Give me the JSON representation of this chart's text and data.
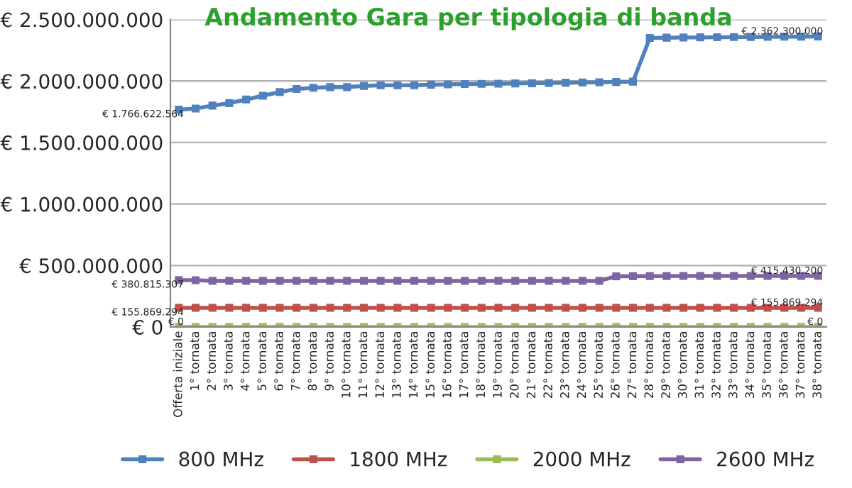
{
  "chart_data": {
    "type": "line",
    "title": "Andamento Gara per tipologia di banda",
    "categories": [
      "Offerta iniziale",
      "1° tornata",
      "2° tornata",
      "3° tornata",
      "4° tornata",
      "5° tornata",
      "6° tornata",
      "7° tornata",
      "8° tornata",
      "9° tornata",
      "10° tornata",
      "11° tornata",
      "12° tornata",
      "13° tornata",
      "14° tornata",
      "15° tornata",
      "16° tornata",
      "17° tornata",
      "18° tornata",
      "19° tornata",
      "20° tornata",
      "21° tornata",
      "22° tornata",
      "23° tornata",
      "24° tornata",
      "25° tornata",
      "26° tornata",
      "27° tornata",
      "28° tornata",
      "29° tornata",
      "30° tornata",
      "31° tornata",
      "32° tornata",
      "33° tornata",
      "34° tornata",
      "35° tornata",
      "36° tornata",
      "37° tornata",
      "38° tornata"
    ],
    "series": [
      {
        "name": "800 MHz",
        "color": "#4f81bd",
        "values": [
          1766622564,
          1776000000,
          1800000000,
          1820000000,
          1850000000,
          1880000000,
          1910000000,
          1935000000,
          1945000000,
          1950000000,
          1950000000,
          1960000000,
          1965000000,
          1965000000,
          1965000000,
          1970000000,
          1972000000,
          1975000000,
          1977000000,
          1978000000,
          1980000000,
          1982000000,
          1984000000,
          1986000000,
          1988000000,
          1990000000,
          1992000000,
          1995000000,
          2350000000,
          2352000000,
          2354000000,
          2355000000,
          2356000000,
          2357000000,
          2358000000,
          2359000000,
          2360000000,
          2361000000,
          2362300000
        ],
        "value_labels": [
          "€ 1.766.622.564",
          null,
          null,
          null,
          null,
          null,
          null,
          null,
          null,
          null,
          null,
          null,
          null,
          null,
          null,
          null,
          null,
          null,
          null,
          null,
          null,
          null,
          null,
          null,
          null,
          null,
          null,
          null,
          null,
          null,
          null,
          null,
          null,
          null,
          null,
          null,
          null,
          null,
          "€ 2.362.300.000"
        ]
      },
      {
        "name": "1800 MHz",
        "color": "#c0504d",
        "values": [
          155869294,
          155869294,
          155869294,
          155869294,
          155869294,
          155869294,
          155869294,
          155869294,
          155869294,
          155869294,
          155869294,
          155869294,
          155869294,
          155869294,
          155869294,
          155869294,
          155869294,
          155869294,
          155869294,
          155869294,
          155869294,
          155869294,
          155869294,
          155869294,
          155869294,
          155869294,
          155869294,
          155869294,
          155869294,
          155869294,
          155869294,
          155869294,
          155869294,
          155869294,
          155869294,
          155869294,
          155869294,
          155869294,
          155869294
        ],
        "value_labels": [
          "€ 155.869.294",
          null,
          null,
          null,
          null,
          null,
          null,
          null,
          null,
          null,
          null,
          null,
          null,
          null,
          null,
          null,
          null,
          null,
          null,
          null,
          null,
          null,
          null,
          null,
          null,
          null,
          null,
          null,
          null,
          null,
          null,
          null,
          null,
          null,
          null,
          null,
          null,
          null,
          "€ 155.869.294"
        ]
      },
      {
        "name": "2000 MHz",
        "color": "#9bbb59",
        "values": [
          0,
          0,
          0,
          0,
          0,
          0,
          0,
          0,
          0,
          0,
          0,
          0,
          0,
          0,
          0,
          0,
          0,
          0,
          0,
          0,
          0,
          0,
          0,
          0,
          0,
          0,
          0,
          0,
          0,
          0,
          0,
          0,
          0,
          0,
          0,
          0,
          0,
          0,
          0
        ],
        "value_labels": [
          "€ 0",
          null,
          null,
          null,
          null,
          null,
          null,
          null,
          null,
          null,
          null,
          null,
          null,
          null,
          null,
          null,
          null,
          null,
          null,
          null,
          null,
          null,
          null,
          null,
          null,
          null,
          null,
          null,
          null,
          null,
          null,
          null,
          null,
          null,
          null,
          null,
          null,
          null,
          "€ 0"
        ]
      },
      {
        "name": "2600 MHz",
        "color": "#8064a2",
        "values": [
          380815307,
          380000000,
          375000000,
          375000000,
          375000000,
          375000000,
          375000000,
          375000000,
          375000000,
          375000000,
          375000000,
          375000000,
          375000000,
          375000000,
          375000000,
          375000000,
          375000000,
          375000000,
          375000000,
          375000000,
          375000000,
          375000000,
          375000000,
          375000000,
          375000000,
          375000000,
          412000000,
          413000000,
          414000000,
          414000000,
          415000000,
          415000000,
          415000000,
          415000000,
          415000000,
          415000000,
          415000000,
          415000000,
          415430200
        ],
        "value_labels": [
          "€ 380.815.307",
          null,
          null,
          null,
          null,
          null,
          null,
          null,
          null,
          null,
          null,
          null,
          null,
          null,
          null,
          null,
          null,
          null,
          null,
          null,
          null,
          null,
          null,
          null,
          null,
          null,
          null,
          null,
          null,
          null,
          null,
          null,
          null,
          null,
          null,
          null,
          null,
          null,
          "€ 415.430.200"
        ]
      }
    ],
    "ylim": [
      0,
      2500000000
    ],
    "yticks": [
      {
        "value": 0,
        "label": "€ 0"
      },
      {
        "value": 500000000,
        "label": "€ 500.000.000"
      },
      {
        "value": 1000000000,
        "label": "€ 1.000.000.000"
      },
      {
        "value": 1500000000,
        "label": "€ 1.500.000.000"
      },
      {
        "value": 2000000000,
        "label": "€ 2.000.000.000"
      },
      {
        "value": 2500000000,
        "label": "€ 2.500.000.000"
      }
    ],
    "grid": "y",
    "legend": "bottom",
    "marker": "square",
    "line_style": "solid"
  }
}
